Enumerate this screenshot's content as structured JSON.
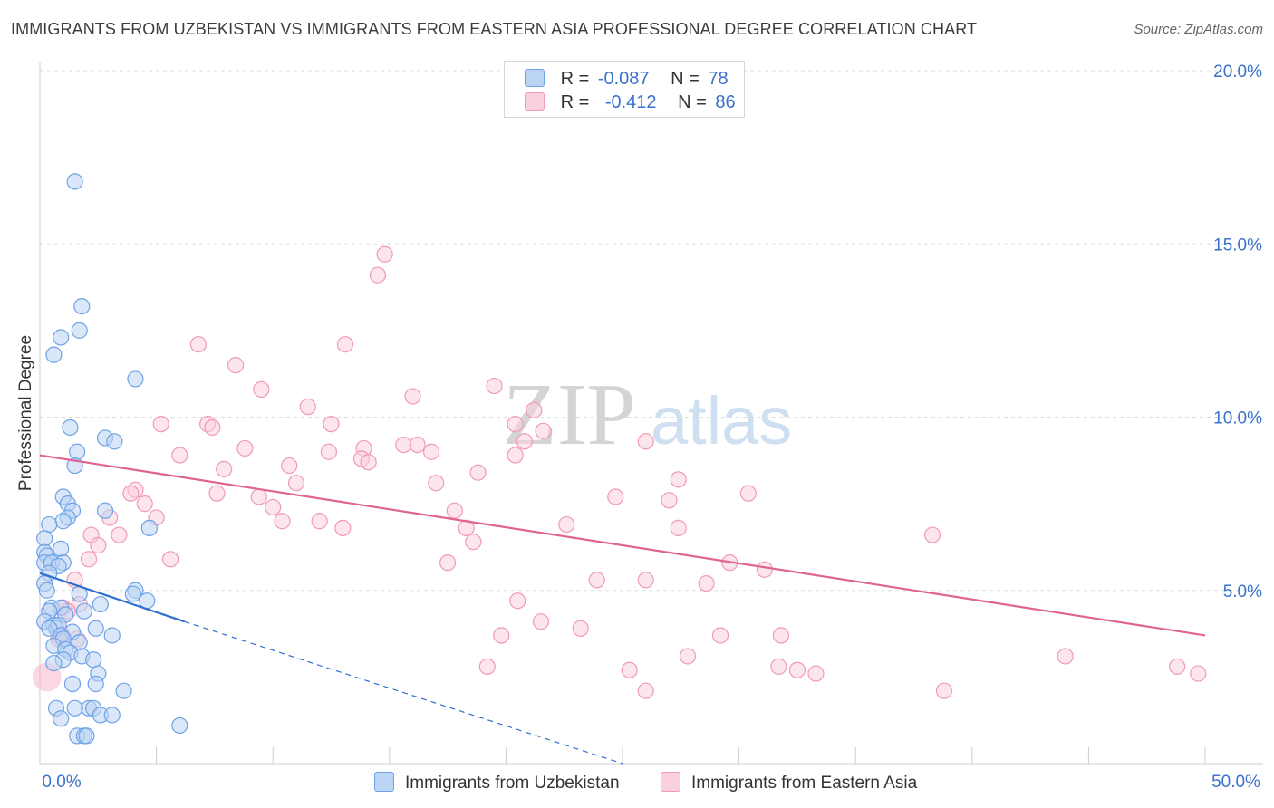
{
  "title": "IMMIGRANTS FROM UZBEKISTAN VS IMMIGRANTS FROM EASTERN ASIA PROFESSIONAL DEGREE CORRELATION CHART",
  "source": "Source: ZipAtlas.com",
  "watermark": {
    "zip": "ZIP",
    "atlas": "atlas"
  },
  "legend": {
    "rows": [
      {
        "r_label": "R =",
        "r_value": "-0.087",
        "n_label": "N =",
        "n_value": "78"
      },
      {
        "r_label": "R =",
        "r_value": "-0.412",
        "n_label": "N =",
        "n_value": "86"
      }
    ]
  },
  "bottom_legend": [
    "Immigrants from Uzbekistan",
    "Immigrants from Eastern Asia"
  ],
  "chart_data": {
    "type": "scatter",
    "title": "IMMIGRANTS FROM UZBEKISTAN VS IMMIGRANTS FROM EASTERN ASIA PROFESSIONAL DEGREE CORRELATION CHART",
    "xlabel": "",
    "ylabel": "Professional Degree",
    "xlim": [
      0,
      50
    ],
    "ylim": [
      0,
      20
    ],
    "x_tick_labels": [
      "0.0%",
      "50.0%"
    ],
    "y_tick_labels": [
      "5.0%",
      "10.0%",
      "15.0%",
      "20.0%"
    ],
    "y_ticks": [
      5,
      10,
      15,
      20
    ],
    "colors": {
      "uzbekistan": "#6fa3e6",
      "eastern_asia": "#f09ab6",
      "uz_line": "#2f6fd0",
      "ea_line": "#e0648f",
      "tick_text": "#3a72cc"
    },
    "series": [
      {
        "name": "Immigrants from Uzbekistan",
        "R": -0.087,
        "N": 78,
        "trend": {
          "x": [
            0,
            6.2
          ],
          "y": [
            5.5,
            4.1
          ]
        },
        "trend_dashed": {
          "x": [
            6.2,
            25.0
          ],
          "y": [
            4.1,
            0.0
          ]
        },
        "points": [
          [
            1.5,
            16.8
          ],
          [
            1.8,
            13.2
          ],
          [
            1.7,
            12.5
          ],
          [
            0.9,
            12.3
          ],
          [
            0.6,
            11.8
          ],
          [
            4.1,
            11.1
          ],
          [
            1.3,
            9.7
          ],
          [
            2.8,
            9.4
          ],
          [
            3.2,
            9.3
          ],
          [
            1.6,
            9.0
          ],
          [
            1.5,
            8.6
          ],
          [
            1.0,
            7.7
          ],
          [
            1.2,
            7.5
          ],
          [
            2.8,
            7.3
          ],
          [
            1.4,
            7.3
          ],
          [
            1.2,
            7.1
          ],
          [
            1.0,
            7.0
          ],
          [
            0.4,
            6.9
          ],
          [
            4.7,
            6.8
          ],
          [
            0.2,
            6.5
          ],
          [
            0.2,
            6.1
          ],
          [
            0.9,
            6.2
          ],
          [
            0.3,
            6.0
          ],
          [
            0.2,
            5.8
          ],
          [
            0.5,
            5.8
          ],
          [
            1.0,
            5.8
          ],
          [
            0.8,
            5.7
          ],
          [
            0.4,
            5.5
          ],
          [
            0.2,
            5.2
          ],
          [
            0.3,
            5.0
          ],
          [
            4.1,
            5.0
          ],
          [
            4.0,
            4.9
          ],
          [
            1.7,
            4.9
          ],
          [
            4.6,
            4.7
          ],
          [
            2.6,
            4.6
          ],
          [
            0.5,
            4.5
          ],
          [
            0.9,
            4.5
          ],
          [
            0.4,
            4.4
          ],
          [
            1.9,
            4.4
          ],
          [
            1.1,
            4.3
          ],
          [
            0.2,
            4.1
          ],
          [
            0.6,
            4.0
          ],
          [
            0.7,
            3.9
          ],
          [
            0.8,
            4.0
          ],
          [
            0.4,
            3.9
          ],
          [
            2.4,
            3.9
          ],
          [
            1.4,
            3.8
          ],
          [
            0.9,
            3.7
          ],
          [
            3.1,
            3.7
          ],
          [
            1.0,
            3.6
          ],
          [
            1.7,
            3.5
          ],
          [
            0.6,
            3.4
          ],
          [
            1.1,
            3.3
          ],
          [
            1.3,
            3.2
          ],
          [
            1.8,
            3.1
          ],
          [
            2.3,
            3.0
          ],
          [
            1.0,
            3.0
          ],
          [
            0.6,
            2.9
          ],
          [
            2.5,
            2.6
          ],
          [
            1.4,
            2.3
          ],
          [
            2.4,
            2.3
          ],
          [
            3.6,
            2.1
          ],
          [
            0.7,
            1.6
          ],
          [
            2.1,
            1.6
          ],
          [
            2.3,
            1.6
          ],
          [
            1.5,
            1.6
          ],
          [
            2.6,
            1.4
          ],
          [
            3.1,
            1.4
          ],
          [
            0.9,
            1.3
          ],
          [
            6.0,
            1.1
          ],
          [
            1.6,
            0.8
          ],
          [
            1.9,
            0.8
          ],
          [
            2.0,
            0.8
          ]
        ]
      },
      {
        "name": "Immigrants from Eastern Asia",
        "R": -0.412,
        "N": 86,
        "trend": {
          "x": [
            0,
            50
          ],
          "y": [
            8.9,
            3.7
          ]
        },
        "points": [
          [
            14.8,
            14.7
          ],
          [
            14.5,
            14.1
          ],
          [
            6.8,
            12.1
          ],
          [
            13.1,
            12.1
          ],
          [
            8.4,
            11.5
          ],
          [
            9.5,
            10.8
          ],
          [
            16.0,
            10.6
          ],
          [
            19.5,
            10.9
          ],
          [
            11.5,
            10.3
          ],
          [
            5.2,
            9.8
          ],
          [
            7.2,
            9.8
          ],
          [
            21.2,
            10.2
          ],
          [
            7.4,
            9.7
          ],
          [
            21.6,
            9.6
          ],
          [
            12.5,
            9.8
          ],
          [
            20.4,
            9.8
          ],
          [
            15.6,
            9.2
          ],
          [
            16.2,
            9.2
          ],
          [
            26.0,
            9.3
          ],
          [
            13.9,
            9.1
          ],
          [
            16.8,
            9.0
          ],
          [
            20.8,
            9.3
          ],
          [
            8.8,
            9.1
          ],
          [
            12.4,
            9.0
          ],
          [
            6.0,
            8.9
          ],
          [
            20.4,
            8.9
          ],
          [
            13.8,
            8.8
          ],
          [
            14.1,
            8.7
          ],
          [
            10.7,
            8.6
          ],
          [
            7.9,
            8.5
          ],
          [
            18.8,
            8.4
          ],
          [
            27.4,
            8.2
          ],
          [
            11.0,
            8.1
          ],
          [
            17.0,
            8.1
          ],
          [
            4.1,
            7.9
          ],
          [
            7.6,
            7.8
          ],
          [
            3.9,
            7.8
          ],
          [
            9.4,
            7.7
          ],
          [
            24.7,
            7.7
          ],
          [
            30.4,
            7.8
          ],
          [
            4.5,
            7.5
          ],
          [
            10.0,
            7.4
          ],
          [
            27.0,
            7.6
          ],
          [
            17.8,
            7.3
          ],
          [
            5.0,
            7.1
          ],
          [
            10.4,
            7.0
          ],
          [
            3.0,
            7.1
          ],
          [
            12.0,
            7.0
          ],
          [
            18.3,
            6.8
          ],
          [
            22.6,
            6.9
          ],
          [
            13.0,
            6.8
          ],
          [
            27.4,
            6.8
          ],
          [
            38.3,
            6.6
          ],
          [
            2.2,
            6.6
          ],
          [
            3.4,
            6.6
          ],
          [
            18.6,
            6.4
          ],
          [
            2.5,
            6.3
          ],
          [
            5.6,
            5.9
          ],
          [
            2.1,
            5.9
          ],
          [
            17.5,
            5.8
          ],
          [
            29.6,
            5.8
          ],
          [
            31.1,
            5.6
          ],
          [
            1.5,
            5.3
          ],
          [
            23.9,
            5.3
          ],
          [
            26.0,
            5.3
          ],
          [
            28.6,
            5.2
          ],
          [
            20.5,
            4.7
          ],
          [
            1.7,
            4.6
          ],
          [
            1.0,
            4.5
          ],
          [
            1.2,
            4.4
          ],
          [
            21.5,
            4.1
          ],
          [
            23.2,
            3.9
          ],
          [
            19.8,
            3.7
          ],
          [
            29.2,
            3.7
          ],
          [
            31.8,
            3.7
          ],
          [
            1.6,
            3.6
          ],
          [
            0.8,
            3.6
          ],
          [
            27.8,
            3.1
          ],
          [
            44.0,
            3.1
          ],
          [
            19.2,
            2.8
          ],
          [
            25.3,
            2.7
          ],
          [
            32.5,
            2.7
          ],
          [
            33.3,
            2.6
          ],
          [
            48.8,
            2.8
          ],
          [
            31.7,
            2.8
          ],
          [
            49.7,
            2.6
          ],
          [
            26.0,
            2.1
          ],
          [
            38.8,
            2.1
          ]
        ]
      }
    ]
  }
}
